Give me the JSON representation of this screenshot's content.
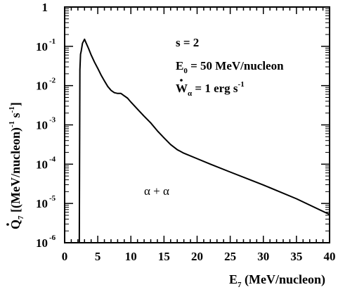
{
  "chart_data": {
    "type": "line",
    "xlabel": {
      "main": "E",
      "sub": "7",
      "rest": " (MeV/nucleon)"
    },
    "ylabel": {
      "dot": "Q",
      "sub": "7",
      "rest": " [(MeV/nucleon)",
      "exp1": "-1",
      "mid": " s",
      "exp2": "-1",
      "close": "]"
    },
    "xlim": [
      0,
      40
    ],
    "ylim_log10": [
      -6,
      0
    ],
    "y_scale": "log",
    "x_ticks": [
      "0",
      "5",
      "10",
      "15",
      "20",
      "25",
      "30",
      "35",
      "40"
    ],
    "x_tick_values": [
      0,
      5,
      10,
      15,
      20,
      25,
      30,
      35,
      40
    ],
    "y_tick_labels": [
      {
        "base": "1",
        "exp": ""
      },
      {
        "base": "10",
        "exp": "-1"
      },
      {
        "base": "10",
        "exp": "-2"
      },
      {
        "base": "10",
        "exp": "-3"
      },
      {
        "base": "10",
        "exp": "-4"
      },
      {
        "base": "10",
        "exp": "-5"
      },
      {
        "base": "10",
        "exp": "-6"
      }
    ],
    "y_tick_values_log10": [
      0,
      -1,
      -2,
      -3,
      -4,
      -5,
      -6
    ],
    "annotations": {
      "s": "s = 2",
      "e0_main": "E",
      "e0_sub": "0",
      "e0_rest": " = 50 MeV/nucleon",
      "w_main": "W",
      "w_sub": "α",
      "w_rest": " = 1 erg s",
      "w_exp": "-1",
      "reaction": "α + α"
    },
    "series": [
      {
        "x": [
          2.2,
          2.25,
          2.3,
          2.4,
          2.5,
          2.7,
          3.0,
          3.2,
          3.6,
          4.0,
          4.5,
          5.0,
          5.5,
          6.0,
          6.5,
          7.0,
          7.5,
          8.0,
          8.5,
          9.0,
          9.5,
          10.0,
          11.0,
          12.0,
          13.0,
          14.0,
          15.0,
          16.0,
          17.0,
          18.0,
          20.0,
          22.0,
          25.0,
          30.0,
          35.0,
          40.0
        ],
        "log10_y": [
          -6.8,
          -4.0,
          -1.6,
          -1.2,
          -1.12,
          -0.92,
          -0.82,
          -0.9,
          -1.05,
          -1.22,
          -1.4,
          -1.56,
          -1.73,
          -1.88,
          -2.02,
          -2.12,
          -2.18,
          -2.2,
          -2.2,
          -2.26,
          -2.32,
          -2.42,
          -2.6,
          -2.78,
          -2.95,
          -3.15,
          -3.33,
          -3.5,
          -3.63,
          -3.72,
          -3.86,
          -4.0,
          -4.2,
          -4.53,
          -4.88,
          -5.28
        ]
      }
    ]
  }
}
